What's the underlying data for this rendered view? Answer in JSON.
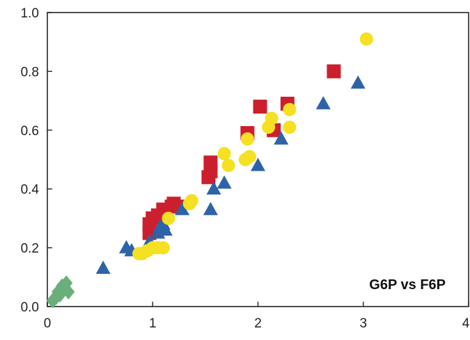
{
  "chart_data": {
    "type": "scatter",
    "title": "",
    "xlabel": "",
    "ylabel": "",
    "xlim": [
      0,
      4
    ],
    "ylim": [
      0,
      1.0
    ],
    "x_ticks": [
      "0",
      "1",
      "2",
      "3",
      "4"
    ],
    "y_ticks": [
      "0.0",
      "0.2",
      "0.4",
      "0.6",
      "0.8",
      "1.0"
    ],
    "x_tick_values": [
      0,
      1,
      2,
      3,
      4
    ],
    "y_tick_values": [
      0,
      0.2,
      0.4,
      0.6,
      0.8,
      1.0
    ],
    "grid": false,
    "annotation": "G6P vs F6P",
    "series": [
      {
        "marker": "square",
        "color": "#cc1f2e",
        "points": [
          [
            0.97,
            0.25
          ],
          [
            0.97,
            0.28
          ],
          [
            1.0,
            0.3
          ],
          [
            1.05,
            0.31
          ],
          [
            1.1,
            0.33
          ],
          [
            1.18,
            0.34
          ],
          [
            1.2,
            0.35
          ],
          [
            1.25,
            0.34
          ],
          [
            1.53,
            0.44
          ],
          [
            1.55,
            0.46
          ],
          [
            1.55,
            0.49
          ],
          [
            1.9,
            0.59
          ],
          [
            2.02,
            0.68
          ],
          [
            2.15,
            0.6
          ],
          [
            2.28,
            0.69
          ],
          [
            2.72,
            0.8
          ]
        ]
      },
      {
        "marker": "triangle",
        "color": "#2e63a8",
        "points": [
          [
            0.53,
            0.13
          ],
          [
            0.75,
            0.2
          ],
          [
            0.8,
            0.19
          ],
          [
            0.97,
            0.22
          ],
          [
            1.05,
            0.25
          ],
          [
            1.07,
            0.27
          ],
          [
            1.1,
            0.28
          ],
          [
            1.12,
            0.26
          ],
          [
            1.28,
            0.33
          ],
          [
            1.55,
            0.33
          ],
          [
            1.58,
            0.4
          ],
          [
            1.68,
            0.42
          ],
          [
            2.0,
            0.48
          ],
          [
            2.22,
            0.57
          ],
          [
            2.62,
            0.69
          ],
          [
            2.95,
            0.76
          ]
        ]
      },
      {
        "marker": "circle",
        "color": "#f5e022",
        "points": [
          [
            0.87,
            0.18
          ],
          [
            0.9,
            0.18
          ],
          [
            0.95,
            0.19
          ],
          [
            1.0,
            0.2
          ],
          [
            1.05,
            0.2
          ],
          [
            1.1,
            0.2
          ],
          [
            1.15,
            0.3
          ],
          [
            1.35,
            0.35
          ],
          [
            1.37,
            0.36
          ],
          [
            1.68,
            0.52
          ],
          [
            1.72,
            0.48
          ],
          [
            1.88,
            0.5
          ],
          [
            1.9,
            0.57
          ],
          [
            1.92,
            0.51
          ],
          [
            2.1,
            0.61
          ],
          [
            2.13,
            0.64
          ],
          [
            2.3,
            0.61
          ],
          [
            2.3,
            0.67
          ],
          [
            3.03,
            0.91
          ]
        ]
      },
      {
        "marker": "diamond",
        "color": "#6aaf7b",
        "points": [
          [
            0.05,
            0.02
          ],
          [
            0.08,
            0.03
          ],
          [
            0.1,
            0.05
          ],
          [
            0.12,
            0.04
          ],
          [
            0.14,
            0.07
          ],
          [
            0.16,
            0.06
          ],
          [
            0.18,
            0.08
          ],
          [
            0.2,
            0.05
          ]
        ]
      }
    ]
  }
}
